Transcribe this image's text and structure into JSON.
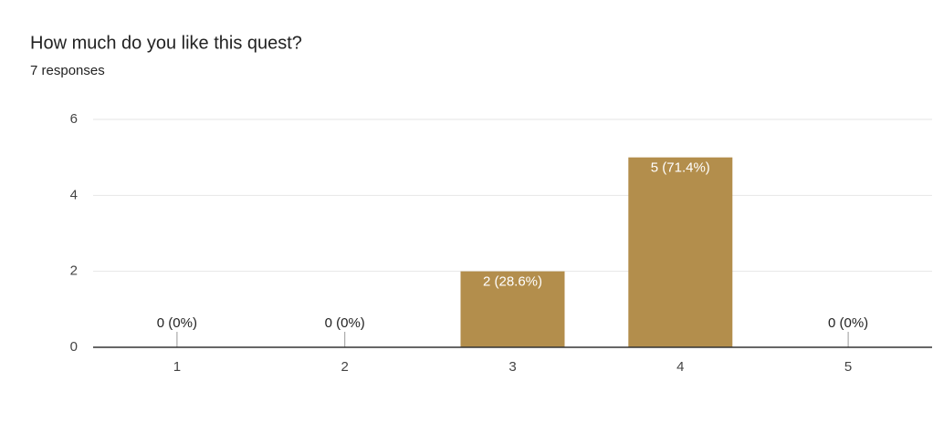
{
  "chart_data": {
    "type": "bar",
    "title": "How much do you like this quest?",
    "subtitle": "7 responses",
    "categories": [
      "1",
      "2",
      "3",
      "4",
      "5"
    ],
    "values": [
      0,
      0,
      2,
      5,
      0
    ],
    "value_labels": [
      "0 (0%)",
      "0 (0%)",
      "2 (28.6%)",
      "5 (71.4%)",
      "0 (0%)"
    ],
    "color": "#b38e4c",
    "ylim": [
      0,
      6
    ],
    "yticks": [
      0,
      2,
      4,
      6
    ],
    "grid": true
  }
}
